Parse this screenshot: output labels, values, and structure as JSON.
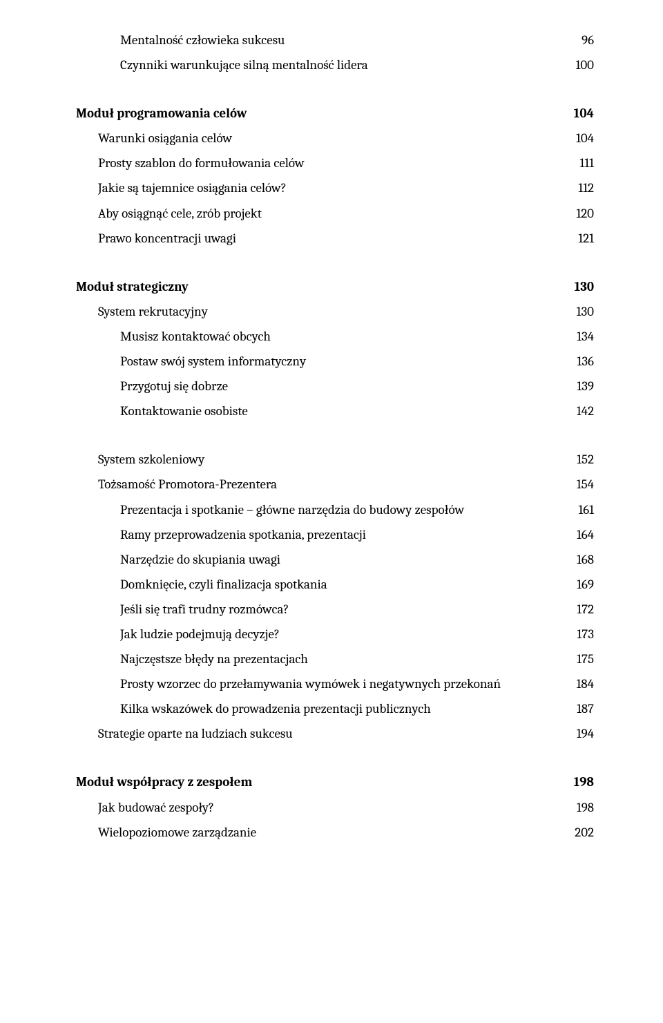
{
  "page": {
    "background_color": "#ffffff",
    "text_color": "#000000",
    "font_family": "Cambria, Georgia, serif",
    "base_fontsize": 19
  },
  "entries": [
    {
      "label": "Mentalność człowieka sukcesu",
      "page": "96",
      "indent": 2,
      "bold": false,
      "gap": false
    },
    {
      "label": "Czynniki warunkujące silną mentalność lidera",
      "page": "100",
      "indent": 2,
      "bold": false,
      "gap": false
    },
    {
      "label": "Moduł programowania celów",
      "page": "104",
      "indent": 0,
      "bold": true,
      "gap": true
    },
    {
      "label": "Warunki osiągania celów",
      "page": "104",
      "indent": 1,
      "bold": false,
      "gap": false
    },
    {
      "label": "Prosty szablon do formułowania celów",
      "page": "111",
      "indent": 1,
      "bold": false,
      "gap": false
    },
    {
      "label": "Jakie są tajemnice osiągania celów?",
      "page": "112",
      "indent": 1,
      "bold": false,
      "gap": false
    },
    {
      "label": "Aby osiągnąć cele, zrób projekt",
      "page": "120",
      "indent": 1,
      "bold": false,
      "gap": false
    },
    {
      "label": "Prawo koncentracji uwagi",
      "page": "121",
      "indent": 1,
      "bold": false,
      "gap": false
    },
    {
      "label": "Moduł strategiczny",
      "page": "130",
      "indent": 0,
      "bold": true,
      "gap": true
    },
    {
      "label": "System rekrutacyjny",
      "page": "130",
      "indent": 1,
      "bold": false,
      "gap": false
    },
    {
      "label": "Musisz kontaktować obcych",
      "page": "134",
      "indent": 2,
      "bold": false,
      "gap": false
    },
    {
      "label": "Postaw swój system informatyczny",
      "page": "136",
      "indent": 2,
      "bold": false,
      "gap": false
    },
    {
      "label": "Przygotuj się dobrze",
      "page": "139",
      "indent": 2,
      "bold": false,
      "gap": false
    },
    {
      "label": "Kontaktowanie osobiste",
      "page": "142",
      "indent": 2,
      "bold": false,
      "gap": false
    },
    {
      "label": "System szkoleniowy",
      "page": "152",
      "indent": 1,
      "bold": false,
      "gap": true
    },
    {
      "label": "Tożsamość Promotora-Prezentera",
      "page": "154",
      "indent": 1,
      "bold": false,
      "gap": false
    },
    {
      "label": "Prezentacja i spotkanie – główne narzędzia do budowy zespołów",
      "page": "161",
      "indent": 2,
      "bold": false,
      "gap": false
    },
    {
      "label": "Ramy przeprowadzenia spotkania, prezentacji",
      "page": "164",
      "indent": 2,
      "bold": false,
      "gap": false
    },
    {
      "label": "Narzędzie do skupiania uwagi",
      "page": "168",
      "indent": 2,
      "bold": false,
      "gap": false
    },
    {
      "label": "Domknięcie, czyli finalizacja spotkania",
      "page": "169",
      "indent": 2,
      "bold": false,
      "gap": false
    },
    {
      "label": "Jeśli się trafi trudny rozmówca?",
      "page": "172",
      "indent": 2,
      "bold": false,
      "gap": false
    },
    {
      "label": "Jak ludzie podejmują decyzje?",
      "page": "173",
      "indent": 2,
      "bold": false,
      "gap": false
    },
    {
      "label": "Najczęstsze błędy na prezentacjach",
      "page": "175",
      "indent": 2,
      "bold": false,
      "gap": false
    },
    {
      "label": "Prosty wzorzec do przełamywania wymówek i negatywnych przekonań",
      "page": "184",
      "indent": 2,
      "bold": false,
      "gap": false
    },
    {
      "label": "Kilka wskazówek do prowadzenia prezentacji publicznych",
      "page": "187",
      "indent": 2,
      "bold": false,
      "gap": false
    },
    {
      "label": "Strategie oparte na ludziach sukcesu",
      "page": "194",
      "indent": 1,
      "bold": false,
      "gap": false
    },
    {
      "label": "Moduł współpracy z zespołem",
      "page": "198",
      "indent": 0,
      "bold": true,
      "gap": true
    },
    {
      "label": "Jak budować zespoły?",
      "page": "198",
      "indent": 1,
      "bold": false,
      "gap": false
    },
    {
      "label": "Wielopoziomowe zarządzanie",
      "page": "202",
      "indent": 1,
      "bold": false,
      "gap": false
    }
  ]
}
